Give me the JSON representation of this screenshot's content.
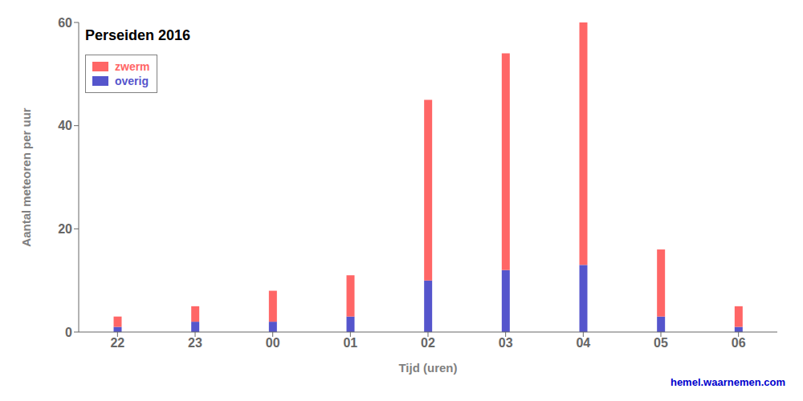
{
  "chart_data": {
    "type": "bar",
    "title": "Perseiden 2016",
    "x_label": "Tijd (uren)",
    "y_label": "Aantal meteoren per uur",
    "categories": [
      "22",
      "23",
      "00",
      "01",
      "02",
      "03",
      "04",
      "05",
      "06"
    ],
    "series": [
      {
        "name": "overig",
        "color": "#5555CC",
        "values": [
          1,
          2,
          2,
          3,
          10,
          12,
          13,
          3,
          1
        ]
      },
      {
        "name": "zwerm",
        "color": "#FF6666",
        "values": [
          2,
          3,
          6,
          8,
          35,
          42,
          47,
          13,
          4
        ]
      }
    ],
    "stacked": true,
    "ylim": [
      0,
      60
    ],
    "yticks": [
      0,
      20,
      40,
      60
    ],
    "grid": false,
    "legend": "upper left",
    "annotations": [
      {
        "text": "hemel.waarnemen.com",
        "color": "#0000CC"
      }
    ]
  }
}
